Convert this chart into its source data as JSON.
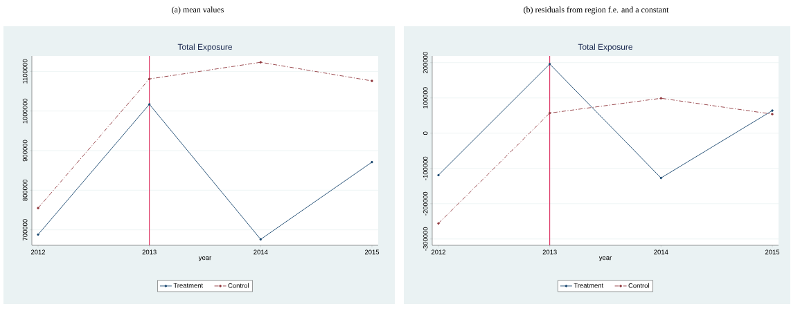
{
  "chart_data": [
    {
      "type": "line",
      "title": "(a) mean values",
      "subtitle": "Total Exposure",
      "xlabel": "year",
      "x": [
        2012,
        2013,
        2014,
        2015
      ],
      "xlim": [
        2011.944,
        2015.056
      ],
      "xticks": [
        2012,
        2013,
        2014,
        2015
      ],
      "ylim": [
        661000,
        1139000
      ],
      "yticks": [
        700000,
        800000,
        900000,
        1000000,
        1100000
      ],
      "grid": "y",
      "legend": "bottom",
      "marker": "circle",
      "series": [
        {
          "name": "Treatment",
          "color": "#1a476f",
          "line_style": "solid",
          "values": [
            688000,
            1017000,
            676000,
            871000
          ]
        },
        {
          "name": "Control",
          "color": "#90353b",
          "line_style": "dashed",
          "values": [
            755000,
            1081000,
            1123000,
            1076000
          ]
        }
      ],
      "ref_lines": [
        {
          "axis": "x",
          "value": 2013,
          "color": "#d4003c"
        }
      ]
    },
    {
      "type": "line",
      "title": "(b) residuals from region f.e. and a constant",
      "subtitle": "Total Exposure",
      "xlabel": "year",
      "x": [
        2012,
        2013,
        2014,
        2015
      ],
      "xlim": [
        2011.944,
        2015.056
      ],
      "xticks": [
        2012,
        2013,
        2014,
        2015
      ],
      "ylim": [
        -318000,
        219000
      ],
      "yticks": [
        -300000,
        -200000,
        -100000,
        0,
        100000,
        200000
      ],
      "grid": "y",
      "legend": "bottom",
      "marker": "circle",
      "series": [
        {
          "name": "Treatment",
          "color": "#1a476f",
          "line_style": "solid",
          "values": [
            -119000,
            196000,
            -127000,
            64000
          ]
        },
        {
          "name": "Control",
          "color": "#90353b",
          "line_style": "dashed",
          "values": [
            -256000,
            57000,
            99000,
            54000
          ]
        }
      ],
      "ref_lines": [
        {
          "axis": "x",
          "value": 2013,
          "color": "#d4003c"
        }
      ]
    }
  ]
}
